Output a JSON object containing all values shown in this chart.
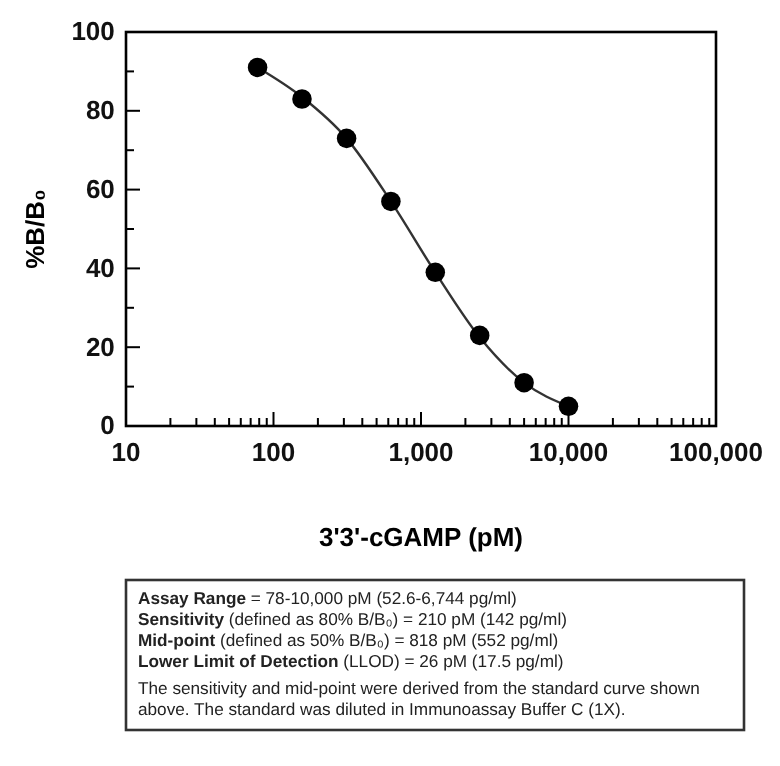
{
  "chart_data": {
    "type": "scatter",
    "xlabel": "3'3'-cGAMP (pM)",
    "ylabel": "%B/B₀",
    "log": "x",
    "marker": "circle",
    "grid": false,
    "xlim": [
      10,
      100000
    ],
    "xticks": [
      10,
      {
        "value": 20,
        "label": null
      },
      {
        "value": 30,
        "label": null
      },
      {
        "value": 40,
        "label": null
      },
      {
        "value": 50,
        "label": null
      },
      {
        "value": 60,
        "label": null
      },
      {
        "value": 70,
        "label": null
      },
      {
        "value": 80,
        "label": null
      },
      {
        "value": 90,
        "label": null
      },
      100,
      {
        "value": 200,
        "label": null
      },
      {
        "value": 300,
        "label": null
      },
      {
        "value": 400,
        "label": null
      },
      {
        "value": 500,
        "label": null
      },
      {
        "value": 600,
        "label": null
      },
      {
        "value": 700,
        "label": null
      },
      {
        "value": 800,
        "label": null
      },
      {
        "value": 900,
        "label": null
      },
      {
        "value": 1000,
        "label": "1,000"
      },
      {
        "value": 2000,
        "label": null
      },
      {
        "value": 3000,
        "label": null
      },
      {
        "value": 4000,
        "label": null
      },
      {
        "value": 5000,
        "label": null
      },
      {
        "value": 6000,
        "label": null
      },
      {
        "value": 7000,
        "label": null
      },
      {
        "value": 8000,
        "label": null
      },
      {
        "value": 9000,
        "label": null
      },
      {
        "value": 10000,
        "label": "10,000"
      },
      {
        "value": 20000,
        "label": null
      },
      {
        "value": 30000,
        "label": null
      },
      {
        "value": 40000,
        "label": null
      },
      {
        "value": 50000,
        "label": null
      },
      {
        "value": 60000,
        "label": null
      },
      {
        "value": 70000,
        "label": null
      },
      {
        "value": 80000,
        "label": null
      },
      {
        "value": 90000,
        "label": null
      },
      {
        "value": 100000,
        "label": "100,000"
      }
    ],
    "ylim": [
      0,
      100
    ],
    "yticks": [
      0,
      {
        "value": 10,
        "label": null
      },
      20,
      {
        "value": 30,
        "label": null
      },
      40,
      {
        "value": 50,
        "label": null
      },
      60,
      {
        "value": 70,
        "label": null
      },
      80,
      {
        "value": 90,
        "label": null
      },
      100
    ],
    "x": [
      78,
      156,
      313,
      625,
      1250,
      2500,
      5000,
      10000
    ],
    "series": [
      {
        "type": "line",
        "color": "#333333",
        "marker": "none",
        "x": [
          78,
          156,
          313,
          625,
          1250,
          2500,
          5000,
          10000
        ],
        "values": [
          91,
          83.5,
          73,
          57,
          39,
          22.5,
          11,
          5
        ]
      },
      {
        "color": "#000000",
        "values": [
          91,
          83,
          73,
          57,
          39,
          23,
          11,
          5
        ]
      }
    ],
    "annotations": [
      "Assay Range = 78-10,000 pM (52.6-6,744 pg/ml)",
      "Sensitivity (defined as 80% B/B₀) =  210 pM (142 pg/ml)",
      "Mid-point (defined as 50% B/B₀) =  818 pM (552 pg/ml)",
      "Lower Limit of Detection (LLOD) =  26 pM (17.5 pg/ml)",
      "The sensitivity and mid-point were derived from the standard curve shown above. The standard was diluted in Immunoassay Buffer C (1X)."
    ]
  }
}
